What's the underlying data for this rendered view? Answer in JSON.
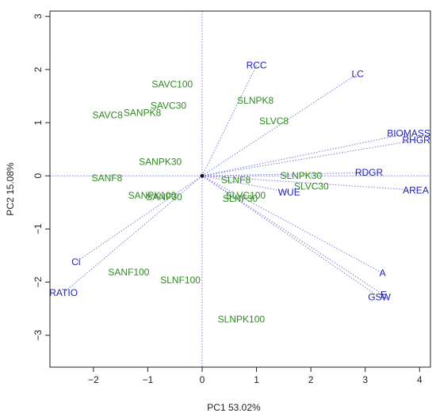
{
  "chart_data": {
    "type": "scatter",
    "subtype": "pca-biplot",
    "xlabel": "PC1 53.02%",
    "ylabel": "PC2 15.08%",
    "xlim": [
      -2.8,
      4.2
    ],
    "ylim": [
      -3.6,
      3.1
    ],
    "x_ticks": [
      -2,
      -1,
      0,
      1,
      2,
      3,
      4
    ],
    "y_ticks": [
      -3,
      -2,
      -1,
      0,
      1,
      2,
      3
    ],
    "grid": false,
    "origin_reference_lines": true,
    "colors": {
      "observations": "#2e8b1f",
      "variables": "#1f1fbf",
      "arrows": "#7b7bd6",
      "origin": "#111111"
    },
    "observations": [
      {
        "label": "SAVC100",
        "x": -0.55,
        "y": 1.72
      },
      {
        "label": "SAVC30",
        "x": -0.62,
        "y": 1.32
      },
      {
        "label": "SAVC8",
        "x": -1.74,
        "y": 1.14
      },
      {
        "label": "SANPK8",
        "x": -1.1,
        "y": 1.19
      },
      {
        "label": "SANPK30",
        "x": -0.77,
        "y": 0.26
      },
      {
        "label": "SANF8",
        "x": -1.75,
        "y": -0.04
      },
      {
        "label": "SANPK100",
        "x": -0.92,
        "y": -0.37
      },
      {
        "label": "SANF30",
        "x": -0.7,
        "y": -0.4
      },
      {
        "label": "SANF100",
        "x": -1.35,
        "y": -1.81
      },
      {
        "label": "SLNF100",
        "x": -0.4,
        "y": -1.96
      },
      {
        "label": "SLNPK100",
        "x": 0.72,
        "y": -2.7
      },
      {
        "label": "SLNPK8",
        "x": 0.98,
        "y": 1.42
      },
      {
        "label": "SLVC8",
        "x": 1.32,
        "y": 1.03
      },
      {
        "label": "SLNF8",
        "x": 0.62,
        "y": -0.08
      },
      {
        "label": "SLNPK30",
        "x": 1.82,
        "y": 0.0
      },
      {
        "label": "SLVC30",
        "x": 2.01,
        "y": -0.2
      },
      {
        "label": "SLVC100",
        "x": 0.8,
        "y": -0.37
      },
      {
        "label": "SLNF30",
        "x": 0.7,
        "y": -0.43
      }
    ],
    "variables": [
      {
        "label": "RCC",
        "x": 1.0,
        "y": 2.08
      },
      {
        "label": "LC",
        "x": 2.86,
        "y": 1.92
      },
      {
        "label": "BIOMASS",
        "x": 3.8,
        "y": 0.8
      },
      {
        "label": "RHGR",
        "x": 3.94,
        "y": 0.67
      },
      {
        "label": "RDGR",
        "x": 3.07,
        "y": 0.06
      },
      {
        "label": "AREA",
        "x": 3.93,
        "y": -0.27
      },
      {
        "label": "WUE",
        "x": 1.6,
        "y": -0.31
      },
      {
        "label": "A",
        "x": 3.32,
        "y": -1.83
      },
      {
        "label": "GSW",
        "x": 3.26,
        "y": -2.28
      },
      {
        "label": "E",
        "x": 3.34,
        "y": -2.24
      },
      {
        "label": "Ci",
        "x": -2.32,
        "y": -1.62
      },
      {
        "label": "RATIO",
        "x": -2.55,
        "y": -2.2
      }
    ]
  }
}
